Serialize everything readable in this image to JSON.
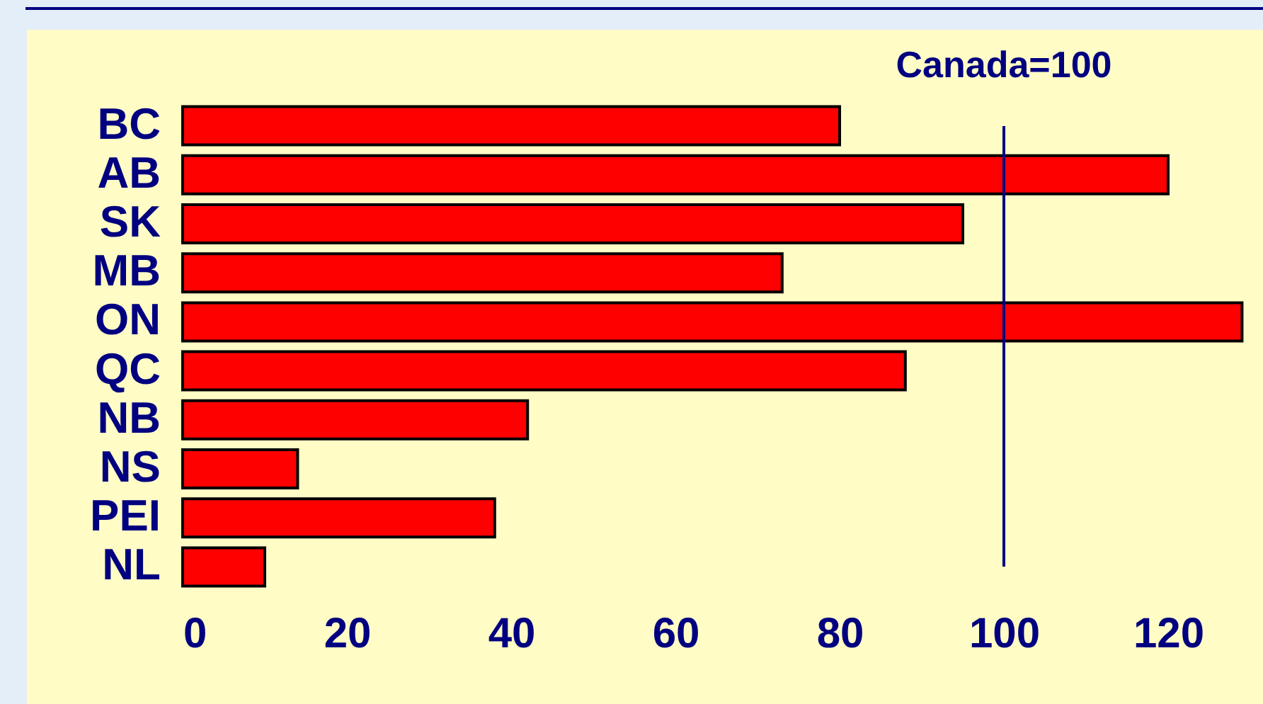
{
  "chart_data": {
    "type": "bar",
    "orientation": "horizontal",
    "categories": [
      "BC",
      "AB",
      "SK",
      "MB",
      "ON",
      "QC",
      "NB",
      "NS",
      "PEI",
      "NL"
    ],
    "values": [
      80,
      120,
      95,
      73,
      129,
      88,
      42,
      14,
      38,
      10
    ],
    "color": "#ff0000",
    "xlim": [
      0,
      130
    ],
    "xticks": [
      0,
      20,
      40,
      60,
      80,
      100,
      120
    ],
    "grid": false,
    "ref_lines": [
      {
        "axis": "x",
        "value": 100,
        "label": "Canada=100",
        "color": "#000080"
      }
    ]
  }
}
